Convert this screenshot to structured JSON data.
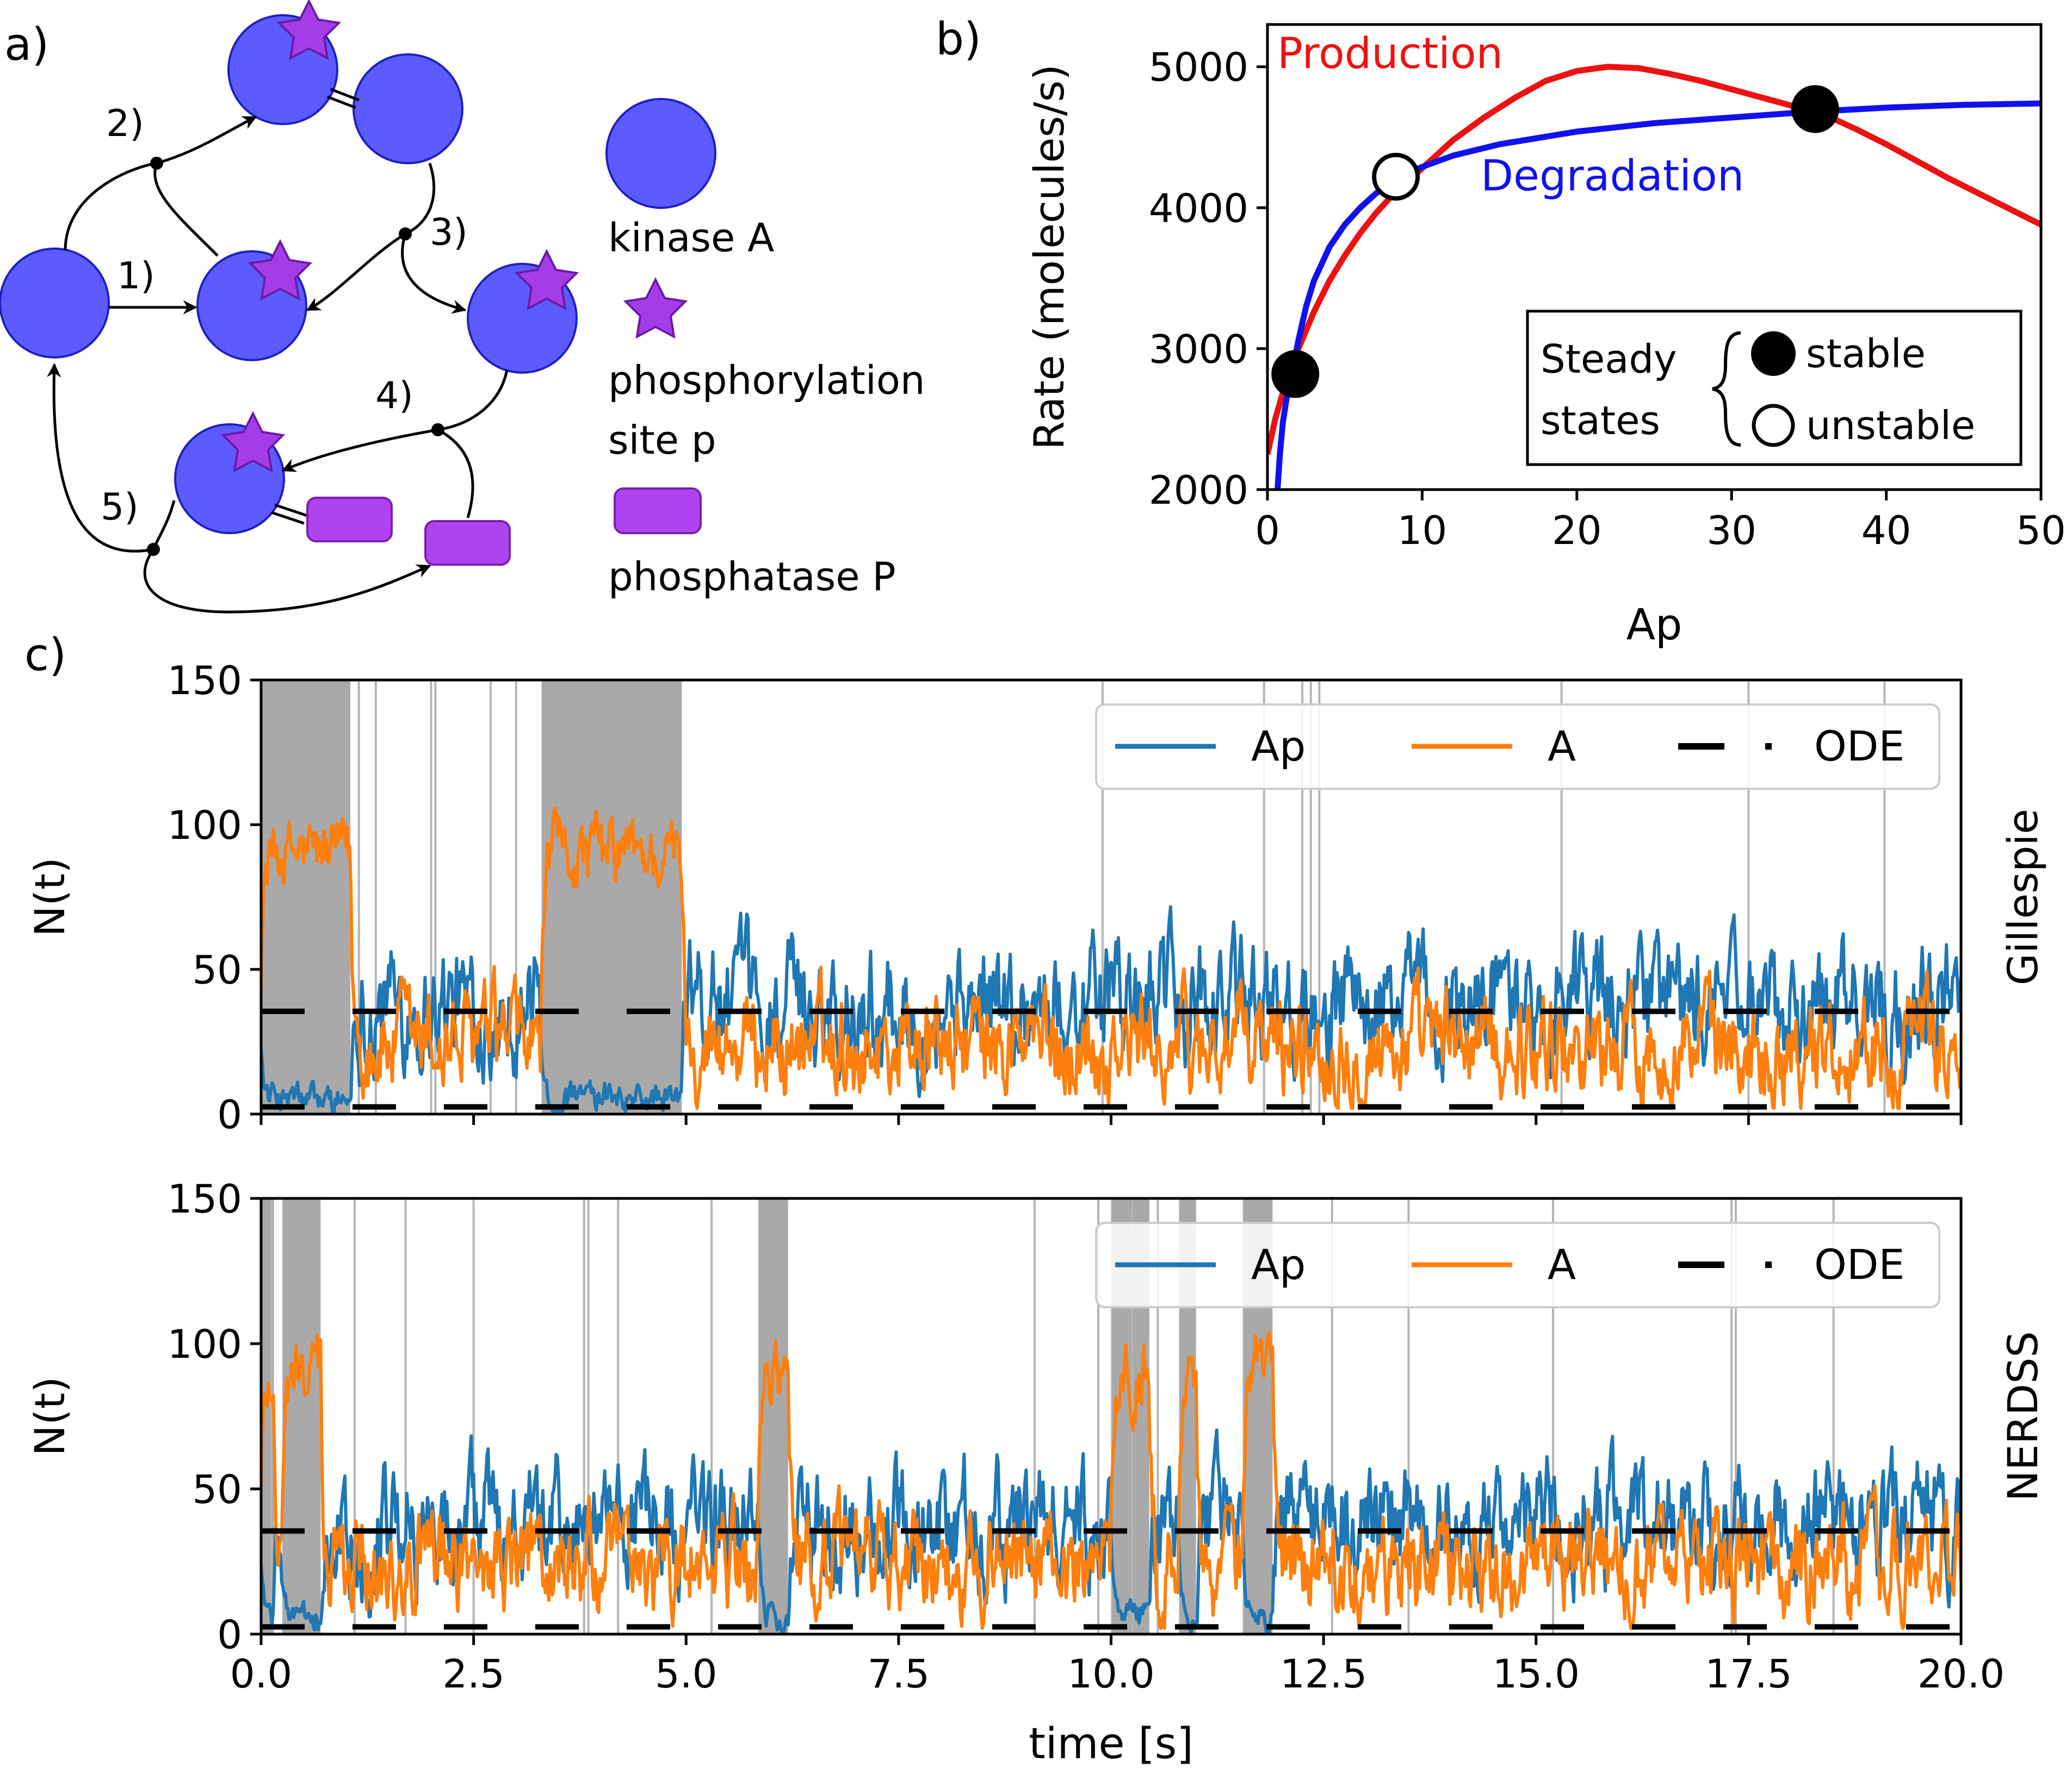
{
  "panel_labels": {
    "a": "a)",
    "b": "b)",
    "c": "c)"
  },
  "scheme": {
    "step_labels": [
      "1)",
      "2)",
      "3)",
      "4)",
      "5)"
    ],
    "legend": {
      "kinase": "kinase A",
      "site_line1": "phosphorylation",
      "site_line2": "site p",
      "phosphatase": "phosphatase P"
    },
    "colors": {
      "kinase": "#5b5bff",
      "site": "#a43de8",
      "phosphatase": "#b043f0"
    }
  },
  "chart_data": [
    {
      "type": "line",
      "panel": "b",
      "xlabel": "Ap",
      "ylabel": "Rate (molecules/s)",
      "xlim": [
        0,
        50
      ],
      "ylim": [
        2000,
        5300
      ],
      "xticks": [
        0,
        10,
        20,
        30,
        40,
        50
      ],
      "yticks": [
        2000,
        3000,
        4000,
        5000
      ],
      "series": [
        {
          "name": "Production",
          "color": "#ee1111",
          "x": [
            0,
            0.5,
            1,
            1.5,
            2,
            3,
            4,
            5,
            6,
            7,
            8,
            9,
            10,
            12,
            14,
            16,
            18,
            20,
            22,
            24,
            26,
            28,
            30,
            32,
            34,
            36,
            38,
            40,
            42,
            44,
            46,
            48,
            50
          ],
          "y": [
            2250,
            2500,
            2690,
            2850,
            3000,
            3260,
            3480,
            3660,
            3820,
            3960,
            4080,
            4180,
            4280,
            4480,
            4640,
            4780,
            4900,
            4970,
            5000,
            4990,
            4950,
            4900,
            4840,
            4780,
            4720,
            4660,
            4560,
            4450,
            4330,
            4210,
            4100,
            3990,
            3880
          ]
        },
        {
          "name": "Degradation",
          "color": "#1111ee",
          "x": [
            0.65,
            0.8,
            1,
            1.3,
            1.6,
            2,
            2.5,
            3,
            4,
            5,
            6,
            7,
            8,
            9,
            10,
            12,
            15,
            20,
            25,
            30,
            35,
            40,
            45,
            50
          ],
          "y": [
            2000,
            2250,
            2480,
            2690,
            2840,
            3060,
            3300,
            3480,
            3720,
            3880,
            4000,
            4100,
            4180,
            4240,
            4290,
            4370,
            4450,
            4540,
            4600,
            4640,
            4680,
            4710,
            4730,
            4740
          ]
        }
      ],
      "steady_states": [
        {
          "x": 1.8,
          "y": 2820,
          "stable": true
        },
        {
          "x": 8.3,
          "y": 4220,
          "stable": false
        },
        {
          "x": 35.4,
          "y": 4700,
          "stable": true
        }
      ],
      "legend": {
        "title_line1": "Steady",
        "title_line2": "states",
        "stable": "stable",
        "unstable": "unstable",
        "placement": "lower-right"
      }
    },
    {
      "type": "line",
      "panel": "c-top",
      "side_label": "Gillespie",
      "ylabel": "N(t)",
      "xlim": [
        0,
        20
      ],
      "ylim": [
        0,
        150
      ],
      "yticks": [
        0,
        50,
        100,
        150
      ],
      "legend_placement": "top-right",
      "series": [
        {
          "name": "Ap",
          "color": "#1f77b4"
        },
        {
          "name": "A",
          "color": "#ff7f0e"
        },
        {
          "name": "ODE",
          "color": "#000000",
          "style": "dashed",
          "levels": [
            35.5,
            2.5
          ]
        }
      ],
      "high_A_intervals": [
        [
          0,
          1.05
        ],
        [
          3.3,
          4.95
        ]
      ],
      "spike_times": [
        1.15,
        1.35,
        2.0,
        2.05,
        2.7,
        3.0,
        9.9,
        11.8,
        12.25,
        12.35,
        12.45,
        15.3,
        17.5,
        19.1
      ]
    },
    {
      "type": "line",
      "panel": "c-bottom",
      "side_label": "NERDSS",
      "ylabel": "N(t)",
      "xlabel": "time [s]",
      "xlim": [
        0,
        20
      ],
      "ylim": [
        0,
        150
      ],
      "yticks": [
        0,
        50,
        100,
        150
      ],
      "xticks": [
        "0.0",
        "2.5",
        "5.0",
        "7.5",
        "10.0",
        "12.5",
        "15.0",
        "17.5",
        "20.0"
      ],
      "legend_placement": "top-right",
      "series": [
        {
          "name": "Ap",
          "color": "#1f77b4"
        },
        {
          "name": "A",
          "color": "#ff7f0e"
        },
        {
          "name": "ODE",
          "color": "#000000",
          "style": "dashed",
          "levels": [
            35.5,
            2.5
          ]
        }
      ],
      "high_A_intervals": [
        [
          0,
          0.15
        ],
        [
          0.25,
          0.7
        ],
        [
          5.85,
          6.2
        ],
        [
          10.0,
          10.45
        ],
        [
          10.8,
          11.0
        ],
        [
          11.55,
          11.9
        ]
      ],
      "spike_times": [
        0.12,
        1.1,
        1.7,
        2.5,
        3.8,
        3.85,
        4.2,
        5.3,
        9.1,
        9.85,
        10.25,
        10.55,
        12.6,
        13.5,
        15.2,
        17.3,
        17.35,
        18.5
      ]
    }
  ]
}
